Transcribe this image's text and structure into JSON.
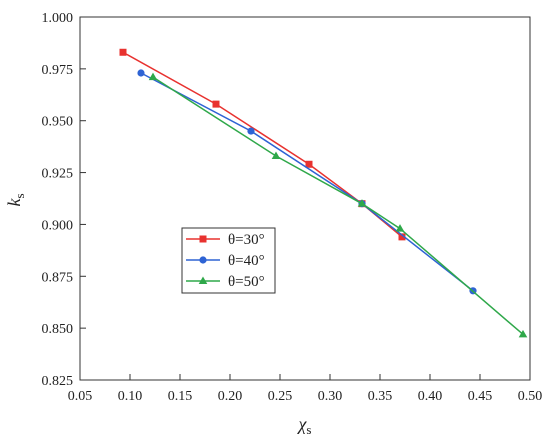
{
  "chart_data": {
    "type": "line",
    "title": "",
    "xlabel": "χs",
    "ylabel": "ks",
    "xlabel_main": "χ",
    "xlabel_sub": "s",
    "ylabel_main": "k",
    "ylabel_sub": "s",
    "xlim": [
      0.05,
      0.5
    ],
    "ylim": [
      0.825,
      1.0
    ],
    "xticks": [
      "0.05",
      "0.10",
      "0.15",
      "0.20",
      "0.25",
      "0.30",
      "0.35",
      "0.40",
      "0.45",
      "0.50"
    ],
    "yticks": [
      "0.825",
      "0.850",
      "0.875",
      "0.900",
      "0.925",
      "0.950",
      "0.975",
      "1.000"
    ],
    "xtick_values": [
      0.05,
      0.1,
      0.15,
      0.2,
      0.25,
      0.3,
      0.35,
      0.4,
      0.45,
      0.5
    ],
    "ytick_values": [
      0.825,
      0.85,
      0.875,
      0.9,
      0.925,
      0.95,
      0.975,
      1.0
    ],
    "grid": false,
    "legend_position": "center-left",
    "series": [
      {
        "name": "θ=30°",
        "color": "#e8322f",
        "marker": "square",
        "x": [
          0.093,
          0.186,
          0.279,
          0.332,
          0.372
        ],
        "y": [
          0.983,
          0.958,
          0.929,
          0.91,
          0.894
        ]
      },
      {
        "name": "θ=40°",
        "color": "#2e63d4",
        "marker": "circle",
        "x": [
          0.111,
          0.221,
          0.332,
          0.443
        ],
        "y": [
          0.973,
          0.945,
          0.91,
          0.868
        ]
      },
      {
        "name": "θ=50°",
        "color": "#2fa84a",
        "marker": "triangle",
        "x": [
          0.123,
          0.246,
          0.332,
          0.37,
          0.493
        ],
        "y": [
          0.971,
          0.933,
          0.91,
          0.898,
          0.847
        ]
      }
    ]
  }
}
